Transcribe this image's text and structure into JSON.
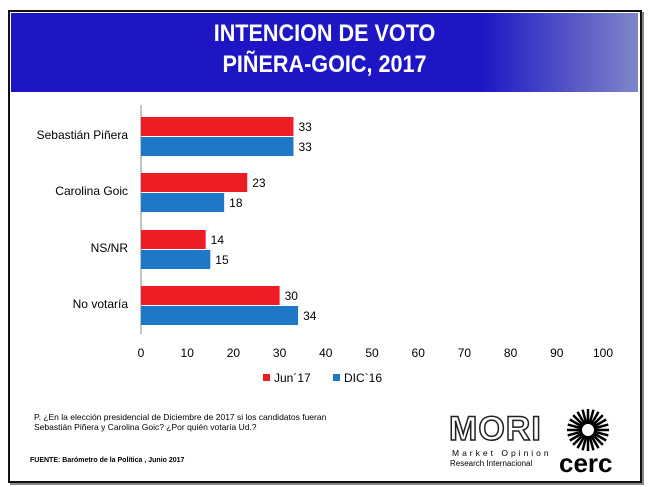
{
  "header": {
    "title_line1": "INTENCION DE VOTO",
    "title_line2": "PIÑERA-GOIC, 2017"
  },
  "chart_data": {
    "type": "bar",
    "orientation": "horizontal",
    "categories": [
      "Sebastián Piñera",
      "Carolina Goic",
      "NS/NR",
      "No votaría"
    ],
    "series": [
      {
        "name": "Jun´17",
        "color": "#ee1c25",
        "values": [
          33,
          23,
          14,
          30
        ]
      },
      {
        "name": "DIC`16",
        "color": "#1f77c8",
        "values": [
          33,
          18,
          15,
          34
        ]
      }
    ],
    "xlim": [
      0,
      100
    ],
    "xticks": [
      0,
      10,
      20,
      30,
      40,
      50,
      60,
      70,
      80,
      90,
      100
    ],
    "grid": false,
    "legend": "bottom"
  },
  "footer": {
    "question": "P. ¿En la elección presidencial de Diciembre de 2017 si los candidatos fueran Sebastián Piñera y Carolina Goic? ¿Por quién votaría Ud.?",
    "source": "FUENTE: Barómetro de la Política , Junio 2017"
  },
  "logos": {
    "mori": "MORI",
    "mori_line1": "Market Opinion",
    "mori_line2": "Research Internacional",
    "cerc": "cerc"
  }
}
